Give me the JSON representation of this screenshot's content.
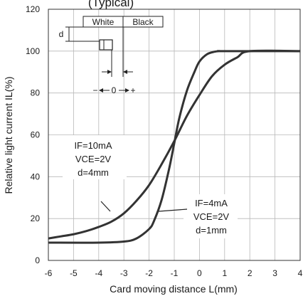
{
  "chart_data": {
    "type": "line",
    "title": "(Typical)",
    "xlabel": "Card moving distance L(mm)",
    "ylabel": "Relative light current IL(%)",
    "xlim": [
      -6,
      4
    ],
    "ylim": [
      0,
      120
    ],
    "xticks": [
      "-6",
      "-5",
      "-4",
      "-3",
      "-2",
      "-1",
      "0",
      "1",
      "2",
      "3",
      "4"
    ],
    "yticks": [
      "0",
      "20",
      "40",
      "60",
      "80",
      "100",
      "120"
    ],
    "grid": true,
    "series": [
      {
        "x": [
          -6,
          -5.5,
          -5,
          -4.5,
          -4,
          -3.5,
          -3,
          -2.5,
          -2,
          -1.5,
          -1,
          -0.5,
          0,
          0.5,
          1,
          1.5,
          2,
          4
        ],
        "y": [
          10.5,
          11.5,
          12.5,
          14,
          16,
          18.5,
          22.5,
          28.5,
          36,
          46,
          57,
          69,
          79,
          88,
          93.5,
          97,
          100,
          100
        ]
      },
      {
        "x": [
          -6,
          -4,
          -3,
          -2.5,
          -2,
          -1.8,
          -1.5,
          -1.2,
          -1,
          -0.8,
          -0.5,
          -0.2,
          0,
          0.3,
          0.6,
          0.8,
          1,
          4
        ],
        "y": [
          8.5,
          8.5,
          9,
          10.5,
          15,
          19,
          29,
          44,
          56,
          68,
          81,
          90,
          95,
          98.5,
          99.7,
          100,
          100,
          100
        ]
      }
    ],
    "annotations": {
      "a1": {
        "l1": "IF=10mA",
        "l2": "VCE=2V",
        "l3": "d=4mm"
      },
      "a2": {
        "l1": "IF=4mA",
        "l2": "VCE=2V",
        "l3": "d=1mm"
      }
    },
    "inset": {
      "white": "White",
      "black": "Black",
      "d": "d",
      "minus": "−",
      "zero": "0",
      "plus": "+"
    }
  }
}
